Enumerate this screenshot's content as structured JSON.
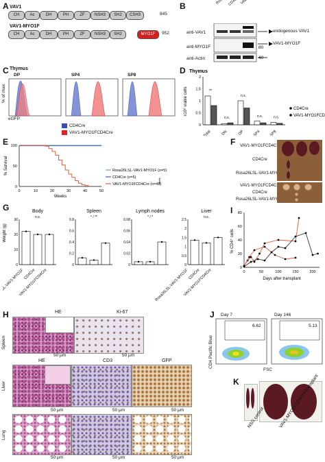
{
  "panels": {
    "A": "A",
    "B": "B",
    "C": "C",
    "D": "D",
    "E": "E",
    "F": "F",
    "G": "G",
    "H": "H",
    "I": "I",
    "J": "J",
    "K": "K"
  },
  "panelA": {
    "vav1_label": "VAV1",
    "fusion_label": "VAV1-MYO1F",
    "domains": [
      "CH",
      "Ac",
      "DH",
      "PH",
      "ZF",
      "NSH3",
      "SH2",
      "CSH3"
    ],
    "fusion_domains": [
      "CH",
      "Ac",
      "DH",
      "PH",
      "ZF",
      "NSH3",
      "SH2"
    ],
    "myo_domain": "MYO1F",
    "vav1_end": "845",
    "fusion_end": "952"
  },
  "panelB": {
    "lanes": [
      "Rosa26LSL-VAV1-MYO1F",
      "CD4Cre",
      "VAV1-MYO1FCD4Cre"
    ],
    "blots": [
      "anti-VAV1",
      "anti-MYO1F",
      "anti-Actin"
    ],
    "marker_80": "80",
    "marker_40": "40",
    "arrow_endog": "endogenous VAV1",
    "arrow_fusion": "VAV1-MYO1F"
  },
  "panelC": {
    "tissue": "Thymus",
    "subsets": [
      "DP",
      "SP4",
      "SP8"
    ],
    "ylabel": "% of max",
    "xlabel": "eGFP",
    "legend": [
      {
        "name": "CD4Cre",
        "color": "#3a4fb5"
      },
      {
        "name": "VAV1-MYO1FCD4Cre",
        "color": "#e0202a"
      }
    ]
  },
  "chart_data": [
    {
      "type": "bar",
      "title": "Thymus",
      "ylabel": "x10⁶ viable cells",
      "categories": [
        "Total",
        "DN",
        "DP",
        "SP4",
        "SP8"
      ],
      "series": [
        {
          "name": "CD4Cre",
          "values": [
            1.2,
            0.05,
            1.0,
            0.15,
            0.1
          ]
        },
        {
          "name": "VAV1-MYO1FCD4Cre",
          "values": [
            0.8,
            0.08,
            0.7,
            0.08,
            0.06
          ]
        }
      ],
      "ytick_labels": [
        "0",
        "0.5",
        "1",
        "1.5",
        "2"
      ],
      "ylim": [
        0,
        2
      ],
      "annotations": [
        "**",
        "n.s.",
        "n.s.",
        "n.s.",
        "n.s."
      ],
      "legend": [
        "CD4Cre",
        "VAV1-MYO1FCD4Cre"
      ]
    },
    {
      "type": "line",
      "ylabel": "% Survival",
      "xlabel": "Weeks",
      "xtick_labels": [
        "0",
        "10",
        "20",
        "30",
        "40",
        "50"
      ],
      "ytick_labels": [
        "0",
        "50",
        "100"
      ],
      "xlim": [
        0,
        50
      ],
      "ylim": [
        0,
        100
      ],
      "series": [
        {
          "name": "Rosa26LSL-VAV1-MYO1F (n=5)",
          "color": "#5fb0a0",
          "x": [
            0,
            50
          ],
          "y": [
            100,
            100
          ]
        },
        {
          "name": "CD4Cre (n=5)",
          "color": "#4a5fc0",
          "x": [
            0,
            50
          ],
          "y": [
            99,
            99
          ]
        },
        {
          "name": "VAV1-MYO1FCD4Cre (n=48)",
          "color": "#e05a3a",
          "x": [
            0,
            10,
            16,
            18,
            20,
            22,
            24,
            26,
            28,
            30,
            32,
            34,
            36,
            38,
            40,
            42
          ],
          "y": [
            100,
            100,
            98,
            92,
            85,
            76,
            64,
            52,
            40,
            30,
            22,
            14,
            8,
            4,
            2,
            0
          ]
        }
      ],
      "annotation": "****"
    },
    {
      "type": "bar",
      "panels": [
        {
          "title": "Body",
          "ylim": [
            0,
            30
          ],
          "yticks": [
            "0",
            "10",
            "20",
            "30"
          ],
          "values": [
            22,
            20,
            20
          ],
          "annotation": "n.s."
        },
        {
          "title": "Spleen",
          "ylim": [
            0,
            0.8
          ],
          "yticks": [
            "0",
            "0.2",
            "0.4",
            "0.6",
            "0.8"
          ],
          "values": [
            0.12,
            0.08,
            0.38
          ],
          "annotation": "* / **"
        },
        {
          "title": "Lymph nodes",
          "ylim": [
            0,
            0.08
          ],
          "yticks": [
            "0",
            "0.02",
            "0.04",
            "0.06",
            "0.08"
          ],
          "values": [
            0.005,
            0.005,
            0.04
          ],
          "annotation": "* / *"
        },
        {
          "title": "Liver",
          "ylim": [
            0,
            2.5
          ],
          "yticks": [
            "0",
            "0.5",
            "1",
            "1.5",
            "2",
            "2.5"
          ],
          "values": [
            1.35,
            1.2,
            1.5
          ],
          "annotation": "n.s."
        }
      ],
      "ylabel": "Weight (g)",
      "categories": [
        "Rosa26LSL-VAV1-MYO1F",
        "CD4Cre",
        "VAV1-MYO1FCD4Cre"
      ]
    },
    {
      "type": "line",
      "ylabel": "% CD4⁺ cells",
      "xlabel": "Days after transplant",
      "xtick_labels": [
        "0",
        "50",
        "100",
        "150",
        "200"
      ],
      "ytick_labels": [
        "0",
        "20",
        "40",
        "60",
        "80"
      ],
      "xlim": [
        0,
        220
      ],
      "ylim": [
        0,
        80
      ],
      "series": [
        {
          "name": "mouse 1",
          "color": "#e05a3a",
          "x": [
            0,
            10,
            20,
            30,
            45,
            60,
            100,
            150,
            160
          ],
          "y": [
            2,
            10,
            15,
            8,
            20,
            35,
            40,
            38,
            72
          ]
        },
        {
          "name": "mouse 2",
          "color": "#e05a3a",
          "x": [
            0,
            15,
            30,
            60,
            90,
            120,
            150
          ],
          "y": [
            2,
            15,
            25,
            30,
            18,
            12,
            14
          ]
        },
        {
          "name": "mouse 3",
          "color": "#333333",
          "x": [
            0,
            20,
            40,
            60,
            80,
            100,
            120,
            150,
            180,
            200,
            215
          ],
          "y": [
            1,
            8,
            12,
            10,
            22,
            30,
            28,
            45,
            50,
            18,
            20
          ]
        }
      ]
    }
  ],
  "panelF": {
    "rows": [
      "VAV1-MYO1FCD4Cre",
      "CD4Cre",
      "Rosa26LSL-VAV1-MYO1F",
      "VAV1-MYO1FCD4Cre",
      "CD4Cre",
      "Rosa26LSL-VAV1-MYO1F"
    ]
  },
  "panelH": {
    "top_labels": [
      "HE",
      "Ki-67"
    ],
    "bottom_labels": [
      "HE",
      "CD3",
      "GFP"
    ],
    "rows": [
      "Spleen",
      "Liver",
      "Lung"
    ],
    "scale": "50 μm"
  },
  "panelJ": {
    "days": [
      "Day 7",
      "Day 146"
    ],
    "percents": [
      "6.62",
      "5.13"
    ],
    "ylabel": "CD4 Pacific Blue",
    "xlabel": "FSC"
  },
  "panelK": {
    "labels": [
      "NSG control",
      "VAV1-MYO1FCD4Cre transplant"
    ]
  },
  "colors": {
    "cd4cre": "#3a4fb5",
    "fusion": "#e0202a",
    "rosa": "#5fb0a0"
  }
}
